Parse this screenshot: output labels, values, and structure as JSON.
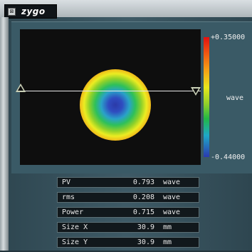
{
  "titlebar": {
    "close_glyph": "⊠",
    "logo": "zygo"
  },
  "colorbar": {
    "max": "+0.35000",
    "min": "-0.44000",
    "unit": "wave"
  },
  "stats": [
    {
      "label": "PV",
      "value": "0.793",
      "unit": "wave"
    },
    {
      "label": "rms",
      "value": "0.208",
      "unit": "wave"
    },
    {
      "label": "Power",
      "value": "0.715",
      "unit": "wave"
    },
    {
      "label": "Size X",
      "value": "30.9",
      "unit": "mm"
    },
    {
      "label": "Size Y",
      "value": "30.9",
      "unit": "mm"
    }
  ]
}
